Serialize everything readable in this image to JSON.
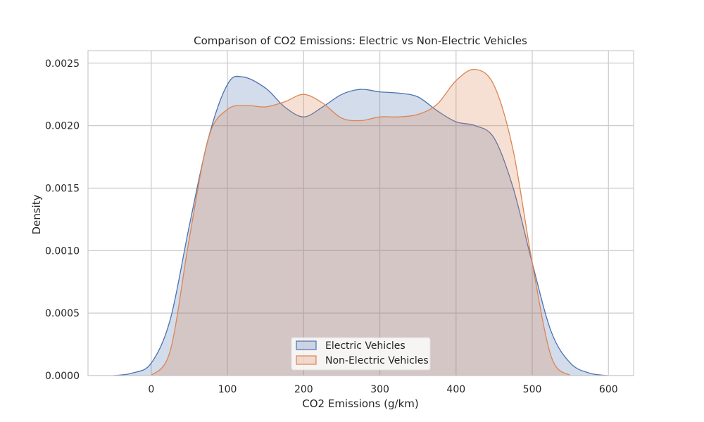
{
  "chart_data": {
    "type": "area",
    "title": "Comparison of CO2 Emissions: Electric vs Non-Electric Vehicles",
    "xlabel": "CO2 Emissions (g/km)",
    "ylabel": "Density",
    "xlim": [
      -83,
      633
    ],
    "ylim": [
      0,
      0.0026
    ],
    "xticks": [
      0,
      100,
      200,
      300,
      400,
      500,
      600
    ],
    "yticks": [
      0.0,
      0.0005,
      0.001,
      0.0015,
      0.002,
      0.0025
    ],
    "ytick_labels": [
      "0.0000",
      "0.0005",
      "0.0010",
      "0.0015",
      "0.0020",
      "0.0025"
    ],
    "grid": true,
    "legend_position": "bottom-center",
    "series": [
      {
        "name": "Electric Vehicles",
        "color": "#4c72b0",
        "x": [
          -50,
          -25,
          0,
          25,
          50,
          75,
          100,
          120,
          150,
          175,
          200,
          225,
          250,
          275,
          300,
          325,
          350,
          375,
          400,
          425,
          450,
          475,
          500,
          525,
          550,
          575,
          600
        ],
        "y": [
          0.0,
          2e-05,
          0.0001,
          0.00045,
          0.0012,
          0.0019,
          0.00233,
          0.00239,
          0.0023,
          0.00215,
          0.00207,
          0.00215,
          0.00225,
          0.00229,
          0.00227,
          0.00226,
          0.00223,
          0.00212,
          0.00203,
          0.002,
          0.0019,
          0.0015,
          0.0009,
          0.00035,
          0.0001,
          2e-05,
          0.0
        ]
      },
      {
        "name": "Non-Electric Vehicles",
        "color": "#dd8452",
        "x": [
          0,
          25,
          50,
          75,
          100,
          125,
          150,
          175,
          200,
          225,
          250,
          275,
          300,
          325,
          350,
          375,
          400,
          425,
          450,
          475,
          500,
          525,
          550
        ],
        "y": [
          0.0,
          0.0002,
          0.0011,
          0.0019,
          0.00213,
          0.00216,
          0.00215,
          0.00219,
          0.00225,
          0.00218,
          0.00206,
          0.00204,
          0.00207,
          0.00207,
          0.00209,
          0.00217,
          0.00236,
          0.00245,
          0.00232,
          0.0018,
          0.0009,
          0.00015,
          0.0
        ]
      }
    ]
  }
}
